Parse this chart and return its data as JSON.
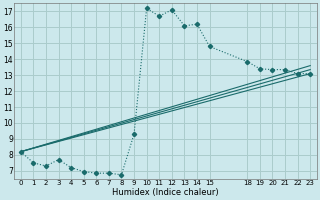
{
  "xlabel": "Humidex (Indice chaleur)",
  "background_color": "#cce8ec",
  "grid_color": "#aacccc",
  "line_color": "#1a6b6b",
  "xlim": [
    -0.5,
    23.5
  ],
  "ylim": [
    6.5,
    17.5
  ],
  "xticks": [
    0,
    1,
    2,
    3,
    4,
    5,
    6,
    7,
    8,
    9,
    10,
    11,
    12,
    13,
    14,
    15,
    18,
    19,
    20,
    21,
    22,
    23
  ],
  "yticks": [
    7,
    8,
    9,
    10,
    11,
    12,
    13,
    14,
    15,
    16,
    17
  ],
  "curve_x": [
    0,
    1,
    2,
    3,
    4,
    5,
    6,
    7,
    8,
    9,
    10,
    11,
    12,
    13,
    14,
    15,
    18,
    19,
    20,
    21,
    22,
    23
  ],
  "curve_y": [
    8.2,
    7.5,
    7.3,
    7.7,
    7.2,
    6.95,
    6.85,
    6.85,
    6.75,
    9.3,
    17.2,
    16.7,
    17.1,
    16.1,
    16.2,
    14.8,
    13.85,
    13.4,
    13.35,
    13.35,
    13.1,
    13.1
  ],
  "straight_lines": [
    {
      "x": [
        0,
        23
      ],
      "y": [
        8.2,
        13.1
      ]
    },
    {
      "x": [
        0,
        23
      ],
      "y": [
        8.2,
        13.35
      ]
    },
    {
      "x": [
        0,
        23
      ],
      "y": [
        8.2,
        13.6
      ]
    }
  ]
}
